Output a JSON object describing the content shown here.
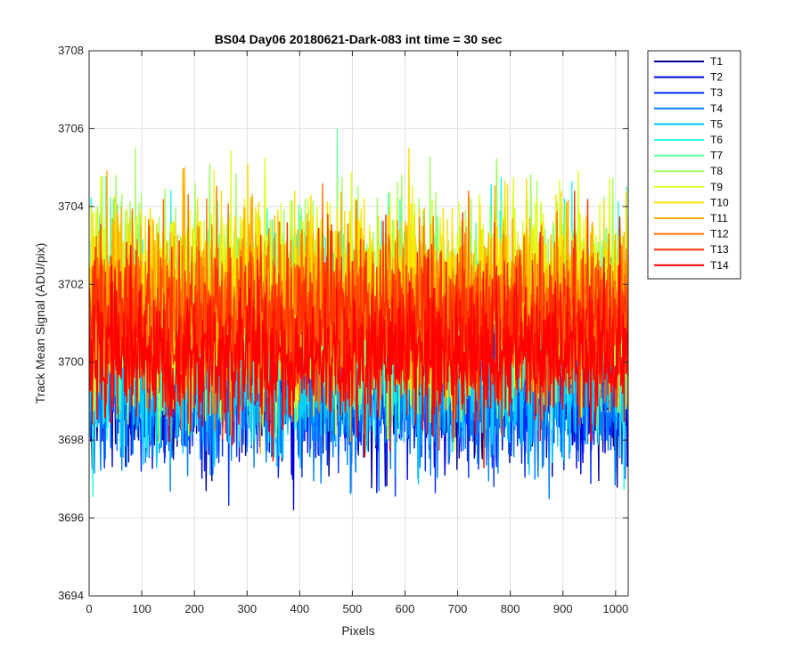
{
  "chart_data": {
    "type": "line",
    "title": "BS04 Day06 20180621-Dark-083 int time = 30 sec",
    "xlabel": "Pixels",
    "ylabel": "Track Mean Signal (ADU/pix)",
    "xlim": [
      0,
      1024
    ],
    "ylim": [
      3694,
      3708
    ],
    "xticks": [
      0,
      100,
      200,
      300,
      400,
      500,
      600,
      700,
      800,
      900,
      1000
    ],
    "yticks": [
      3694,
      3696,
      3698,
      3700,
      3702,
      3704,
      3706,
      3708
    ],
    "grid": true,
    "legend_position": "outside-top-right",
    "n_points_per_series": 1024,
    "series": [
      {
        "name": "T1",
        "color": "#00008F",
        "mean": 3699.6,
        "noise": 1.0
      },
      {
        "name": "T2",
        "color": "#0000DF",
        "mean": 3699.5,
        "noise": 1.0
      },
      {
        "name": "T3",
        "color": "#0030FF",
        "mean": 3699.4,
        "noise": 1.0
      },
      {
        "name": "T4",
        "color": "#0080FF",
        "mean": 3699.3,
        "noise": 1.05
      },
      {
        "name": "T5",
        "color": "#00CFFF",
        "mean": 3699.8,
        "noise": 1.1
      },
      {
        "name": "T6",
        "color": "#20FFDF",
        "mean": 3701.1,
        "noise": 1.2
      },
      {
        "name": "T7",
        "color": "#60FF9F",
        "mean": 3701.3,
        "noise": 1.2
      },
      {
        "name": "T8",
        "color": "#9FFF60",
        "mean": 3701.6,
        "noise": 1.2
      },
      {
        "name": "T9",
        "color": "#DFFF20",
        "mean": 3701.8,
        "noise": 1.2
      },
      {
        "name": "T10",
        "color": "#FFDF00",
        "mean": 3701.7,
        "noise": 1.15
      },
      {
        "name": "T11",
        "color": "#FFAF00",
        "mean": 3701.4,
        "noise": 1.1
      },
      {
        "name": "T12",
        "color": "#FF7000",
        "mean": 3701.2,
        "noise": 1.1
      },
      {
        "name": "T13",
        "color": "#FF3000",
        "mean": 3701.0,
        "noise": 1.0
      },
      {
        "name": "T14",
        "color": "#FF0000",
        "mean": 3700.1,
        "noise": 0.9
      }
    ]
  }
}
